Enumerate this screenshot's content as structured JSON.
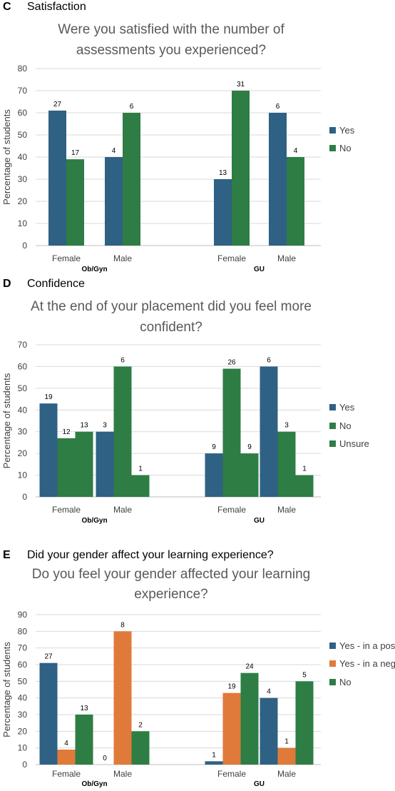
{
  "panels": [
    {
      "letter": "C",
      "heading": "Satisfaction"
    },
    {
      "letter": "D",
      "heading": "Confidence"
    },
    {
      "letter": "E",
      "heading": "Did your gender affect your learning experience?"
    }
  ],
  "colors": {
    "Yes": "#2e6184",
    "No": "#e07a3a",
    "Unsure": "#2e7d44"
  },
  "chart_data": [
    {
      "type": "bar",
      "title_lines": [
        "Were you satisfied with the number of",
        "assessments you experienced?"
      ],
      "ylabel": "Percentage of students",
      "ylim": [
        0,
        80
      ],
      "yticks": [
        0,
        10,
        20,
        30,
        40,
        50,
        60,
        70,
        80
      ],
      "categories": [
        "Female",
        "Male",
        "Female",
        "Male"
      ],
      "groups": [
        "Ob/Gyn",
        "GU"
      ],
      "legend_position": "right",
      "series": [
        {
          "name": "Yes",
          "values": [
            61,
            40,
            30,
            60
          ],
          "labels": [
            "27",
            "4",
            "13",
            "6"
          ]
        },
        {
          "name": "No",
          "values": [
            39,
            60,
            70,
            40
          ],
          "labels": [
            "17",
            "6",
            "31",
            "4"
          ]
        }
      ]
    },
    {
      "type": "bar",
      "title_lines": [
        "At the end of your placement did you feel more",
        "confident?"
      ],
      "ylabel": "Percentage of students",
      "ylim": [
        0,
        70
      ],
      "yticks": [
        0,
        10,
        20,
        30,
        40,
        50,
        60,
        70
      ],
      "categories": [
        "Female",
        "Male",
        "Female",
        "Male"
      ],
      "groups": [
        "Ob/Gyn",
        "GU"
      ],
      "legend_position": "right",
      "series": [
        {
          "name": "Yes",
          "values": [
            43,
            30,
            20,
            60
          ],
          "labels": [
            "19",
            "3",
            "9",
            "6"
          ]
        },
        {
          "name": "No",
          "values": [
            27,
            60,
            59,
            30
          ],
          "labels": [
            "12",
            "6",
            "26",
            "3"
          ]
        },
        {
          "name": "Unsure",
          "values": [
            30,
            10,
            20,
            10
          ],
          "labels": [
            "13",
            "1",
            "9",
            "1"
          ]
        }
      ]
    },
    {
      "type": "bar",
      "title_lines": [
        "Do you feel your gender affected your learning",
        "experience?"
      ],
      "ylabel": "Percentage of students",
      "ylim": [
        0,
        90
      ],
      "yticks": [
        0,
        10,
        20,
        30,
        40,
        50,
        60,
        70,
        80,
        90
      ],
      "categories": [
        "Female",
        "Male",
        "Female",
        "Male"
      ],
      "groups": [
        "Ob/Gyn",
        "GU"
      ],
      "legend_position": "right",
      "series": [
        {
          "name": "Yes - in a positive way",
          "values": [
            61,
            0,
            2,
            40
          ],
          "labels": [
            "27",
            "0",
            "1",
            "4"
          ]
        },
        {
          "name": "Yes - in a negative way",
          "values": [
            9,
            80,
            43,
            10
          ],
          "labels": [
            "4",
            "8",
            "19",
            "1"
          ]
        },
        {
          "name": "No",
          "values": [
            30,
            20,
            55,
            50
          ],
          "labels": [
            "13",
            "2",
            "24",
            "5"
          ]
        }
      ]
    }
  ]
}
